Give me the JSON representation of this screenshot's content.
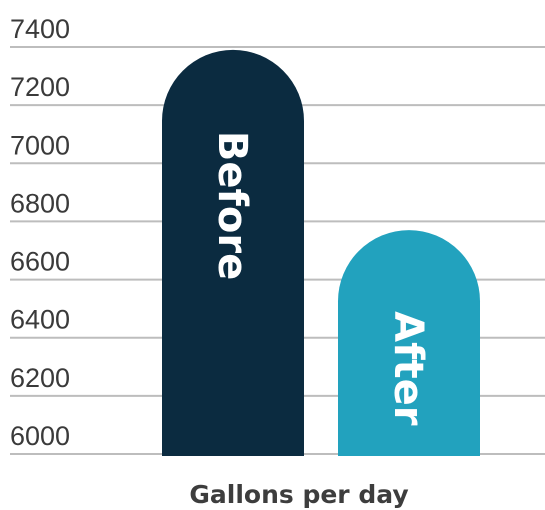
{
  "chart_data": {
    "type": "bar",
    "title": "",
    "xlabel": "Gallons  per day",
    "ylabel": "",
    "categories": [
      "Before",
      "After"
    ],
    "values": [
      7390,
      6770
    ],
    "ylim": [
      5920,
      7400
    ],
    "yticks": [
      "7400",
      "7200",
      "7000",
      "6800",
      "6600",
      "6400",
      "6200",
      "6000"
    ],
    "grid": true,
    "colors": {
      "Before": "#0b2b40",
      "After": "#22a2be",
      "grid": "#bdbdbd"
    }
  }
}
